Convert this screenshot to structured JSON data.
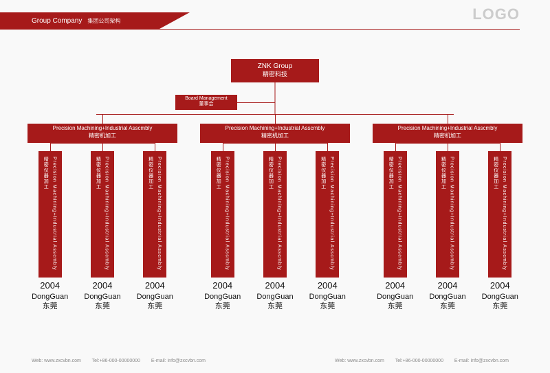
{
  "colors": {
    "primary": "#a61a1a",
    "bg": "#f9f9f9",
    "logo": "#cccccc",
    "text_dark": "#111111",
    "footer": "#888888"
  },
  "header": {
    "en": "Group Company",
    "cn": "集团公司架构"
  },
  "logo": "LOGO",
  "org": {
    "type": "tree",
    "root": {
      "en": "ZNK Group",
      "cn": "精密科技"
    },
    "board": {
      "en": "Board Management",
      "cn": "董事会"
    },
    "level2": {
      "en": "Precision Machining+Industrial Asscmbly",
      "cn": "精密机加工"
    },
    "leaf": {
      "en": "Precision Machining+Industrial Asscmbly",
      "cn": "精密仪器加工"
    },
    "leaf_footer": {
      "year": "2004",
      "city_en": "DongGuan",
      "city_cn": "东莞"
    },
    "branch_count": 3,
    "leaves_per_branch": 3,
    "leaf_box_size": {
      "w": 34,
      "h": 184
    }
  },
  "footer": {
    "web": "Web: www.zxcvbn.com",
    "tel": "Tel:+86-000-00000000",
    "email": "E-mail: info@zxcvbn.com"
  }
}
